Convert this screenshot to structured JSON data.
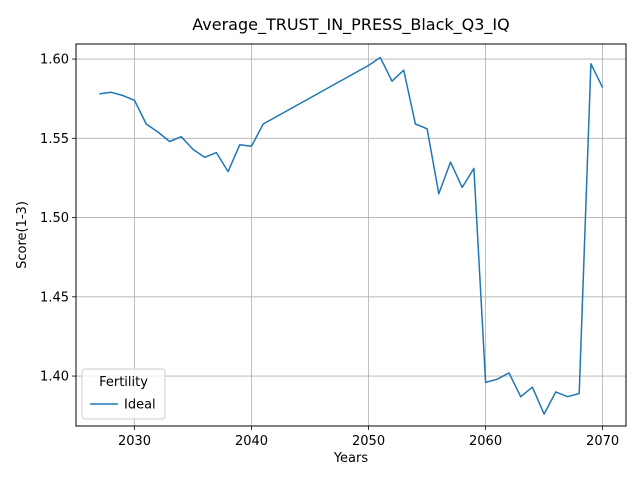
{
  "chart_data": {
    "type": "line",
    "title": "Average_TRUST_IN_PRESS_Black_Q3_IQ",
    "xlabel": "Years",
    "ylabel": "Score(1-3)",
    "xlim": [
      2025,
      2072
    ],
    "ylim": [
      1.3685,
      1.6095
    ],
    "xticks": [
      2030,
      2040,
      2050,
      2060,
      2070
    ],
    "yticks": [
      1.4,
      1.45,
      1.5,
      1.55,
      1.6
    ],
    "grid": true,
    "legend": {
      "title": "Fertility",
      "placement": "lower-left"
    },
    "series": [
      {
        "name": "Ideal",
        "color": "#1f77b4",
        "x": [
          2027,
          2028,
          2029,
          2030,
          2031,
          2032,
          2033,
          2034,
          2035,
          2036,
          2037,
          2038,
          2039,
          2040,
          2041,
          2050,
          2051,
          2052,
          2053,
          2054,
          2055,
          2056,
          2057,
          2058,
          2059,
          2060,
          2061,
          2062,
          2063,
          2064,
          2065,
          2066,
          2067,
          2068,
          2069,
          2070
        ],
        "y": [
          1.578,
          1.579,
          1.577,
          1.574,
          1.559,
          1.554,
          1.548,
          1.551,
          1.543,
          1.538,
          1.541,
          1.529,
          1.546,
          1.545,
          1.559,
          1.596,
          1.601,
          1.586,
          1.593,
          1.559,
          1.556,
          1.515,
          1.535,
          1.519,
          1.531,
          1.396,
          1.398,
          1.402,
          1.387,
          1.393,
          1.376,
          1.39,
          1.387,
          1.389,
          1.597,
          1.582
        ]
      }
    ]
  }
}
